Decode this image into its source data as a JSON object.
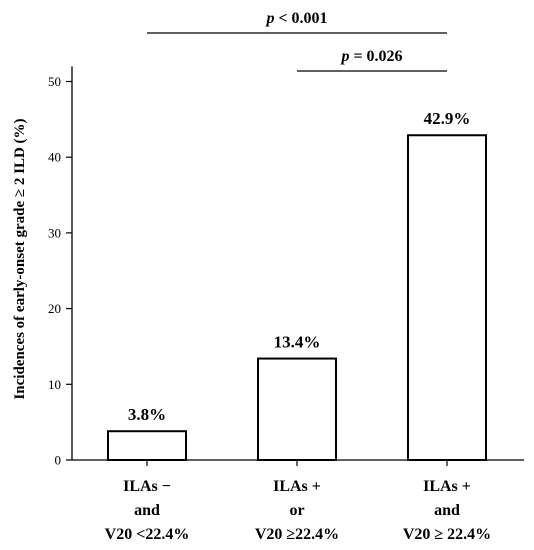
{
  "chart_data": {
    "type": "bar",
    "categories": [
      [
        "ILAs −",
        "and",
        "V20 <22.4%"
      ],
      [
        "ILAs +",
        "or",
        "V20 ≥22.4%"
      ],
      [
        "ILAs +",
        "and",
        "V20 ≥ 22.4%"
      ]
    ],
    "values": [
      3.8,
      13.4,
      42.9
    ],
    "data_labels": [
      "3.8%",
      "13.4%",
      "42.9%"
    ],
    "ylabel": "Incidences of early-onset grade ≥ 2 ILD (%)",
    "xlabel": "",
    "ylim": [
      0,
      52
    ],
    "yticks": [
      0,
      10,
      20,
      30,
      40,
      50
    ],
    "grid": false,
    "significance": [
      {
        "from": 0,
        "to": 2,
        "p_symbol": "p",
        "text": " < 0.001"
      },
      {
        "from": 1,
        "to": 2,
        "p_symbol": "p",
        "text": " = 0.026"
      }
    ]
  }
}
